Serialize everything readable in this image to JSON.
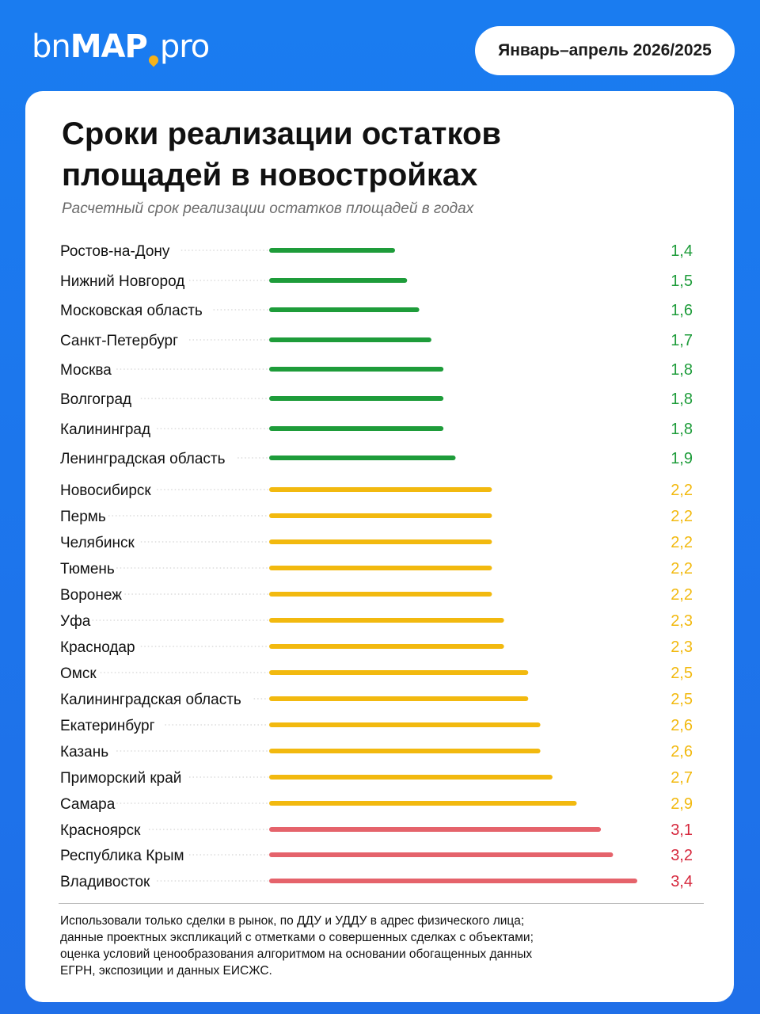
{
  "logo": {
    "part1": "bn",
    "part2": "MAP",
    "part3": "pro"
  },
  "period": "Январь–апрель 2026/2025",
  "title": "Сроки реализации остатков площадей в новостройках",
  "subtitle": "Расчетный срок реализации остатков площадей в годах",
  "footnote": "Использовали только сделки в рынок, по ДДУ и УДДУ в адрес физического лица; данные проектных экспликаций с отметками о совершенных сделках с объектами; оценка условий ценообразования алгоритмом на основании обогащенных данных ЕГРН, экспозиции и данных ЕИСЖС.",
  "colors": {
    "green": "#1e9c3a",
    "yellow": "#f2b90f",
    "red": "#e5636b",
    "value_red": "#d6283d"
  },
  "chart_data": {
    "type": "bar",
    "orientation": "horizontal",
    "title": "Сроки реализации остатков площадей в новостройках",
    "subtitle": "Расчетный срок реализации остатков площадей в годах",
    "categories": [
      "Ростов-на-Дону",
      "Нижний Новгород",
      "Московская область",
      "Санкт-Петербург",
      "Москва",
      "Волгоград",
      "Калининград",
      "Ленинградская область",
      "Новосибирск",
      "Пермь",
      "Челябинск",
      "Тюмень",
      "Воронеж",
      "Уфа",
      "Краснодар",
      "Омск",
      "Калининградская область",
      "Екатеринбург",
      "Казань",
      "Приморский край",
      "Самара",
      "Красноярск",
      "Республика Крым",
      "Владивосток"
    ],
    "values": [
      1.4,
      1.5,
      1.6,
      1.7,
      1.8,
      1.8,
      1.8,
      1.9,
      2.2,
      2.2,
      2.2,
      2.2,
      2.2,
      2.3,
      2.3,
      2.5,
      2.5,
      2.6,
      2.6,
      2.7,
      2.9,
      3.1,
      3.2,
      3.4
    ],
    "value_labels": [
      "1,4",
      "1,5",
      "1,6",
      "1,7",
      "1,8",
      "1,8",
      "1,8",
      "1,9",
      "2,2",
      "2,2",
      "2,2",
      "2,2",
      "2,2",
      "2,3",
      "2,3",
      "2,5",
      "2,5",
      "2,6",
      "2,6",
      "2,7",
      "2,9",
      "3,1",
      "3,2",
      "3,4"
    ],
    "color_groups": [
      "green",
      "green",
      "green",
      "green",
      "green",
      "green",
      "green",
      "green",
      "yellow",
      "yellow",
      "yellow",
      "yellow",
      "yellow",
      "yellow",
      "yellow",
      "yellow",
      "yellow",
      "yellow",
      "yellow",
      "yellow",
      "yellow",
      "red",
      "red",
      "red"
    ]
  }
}
